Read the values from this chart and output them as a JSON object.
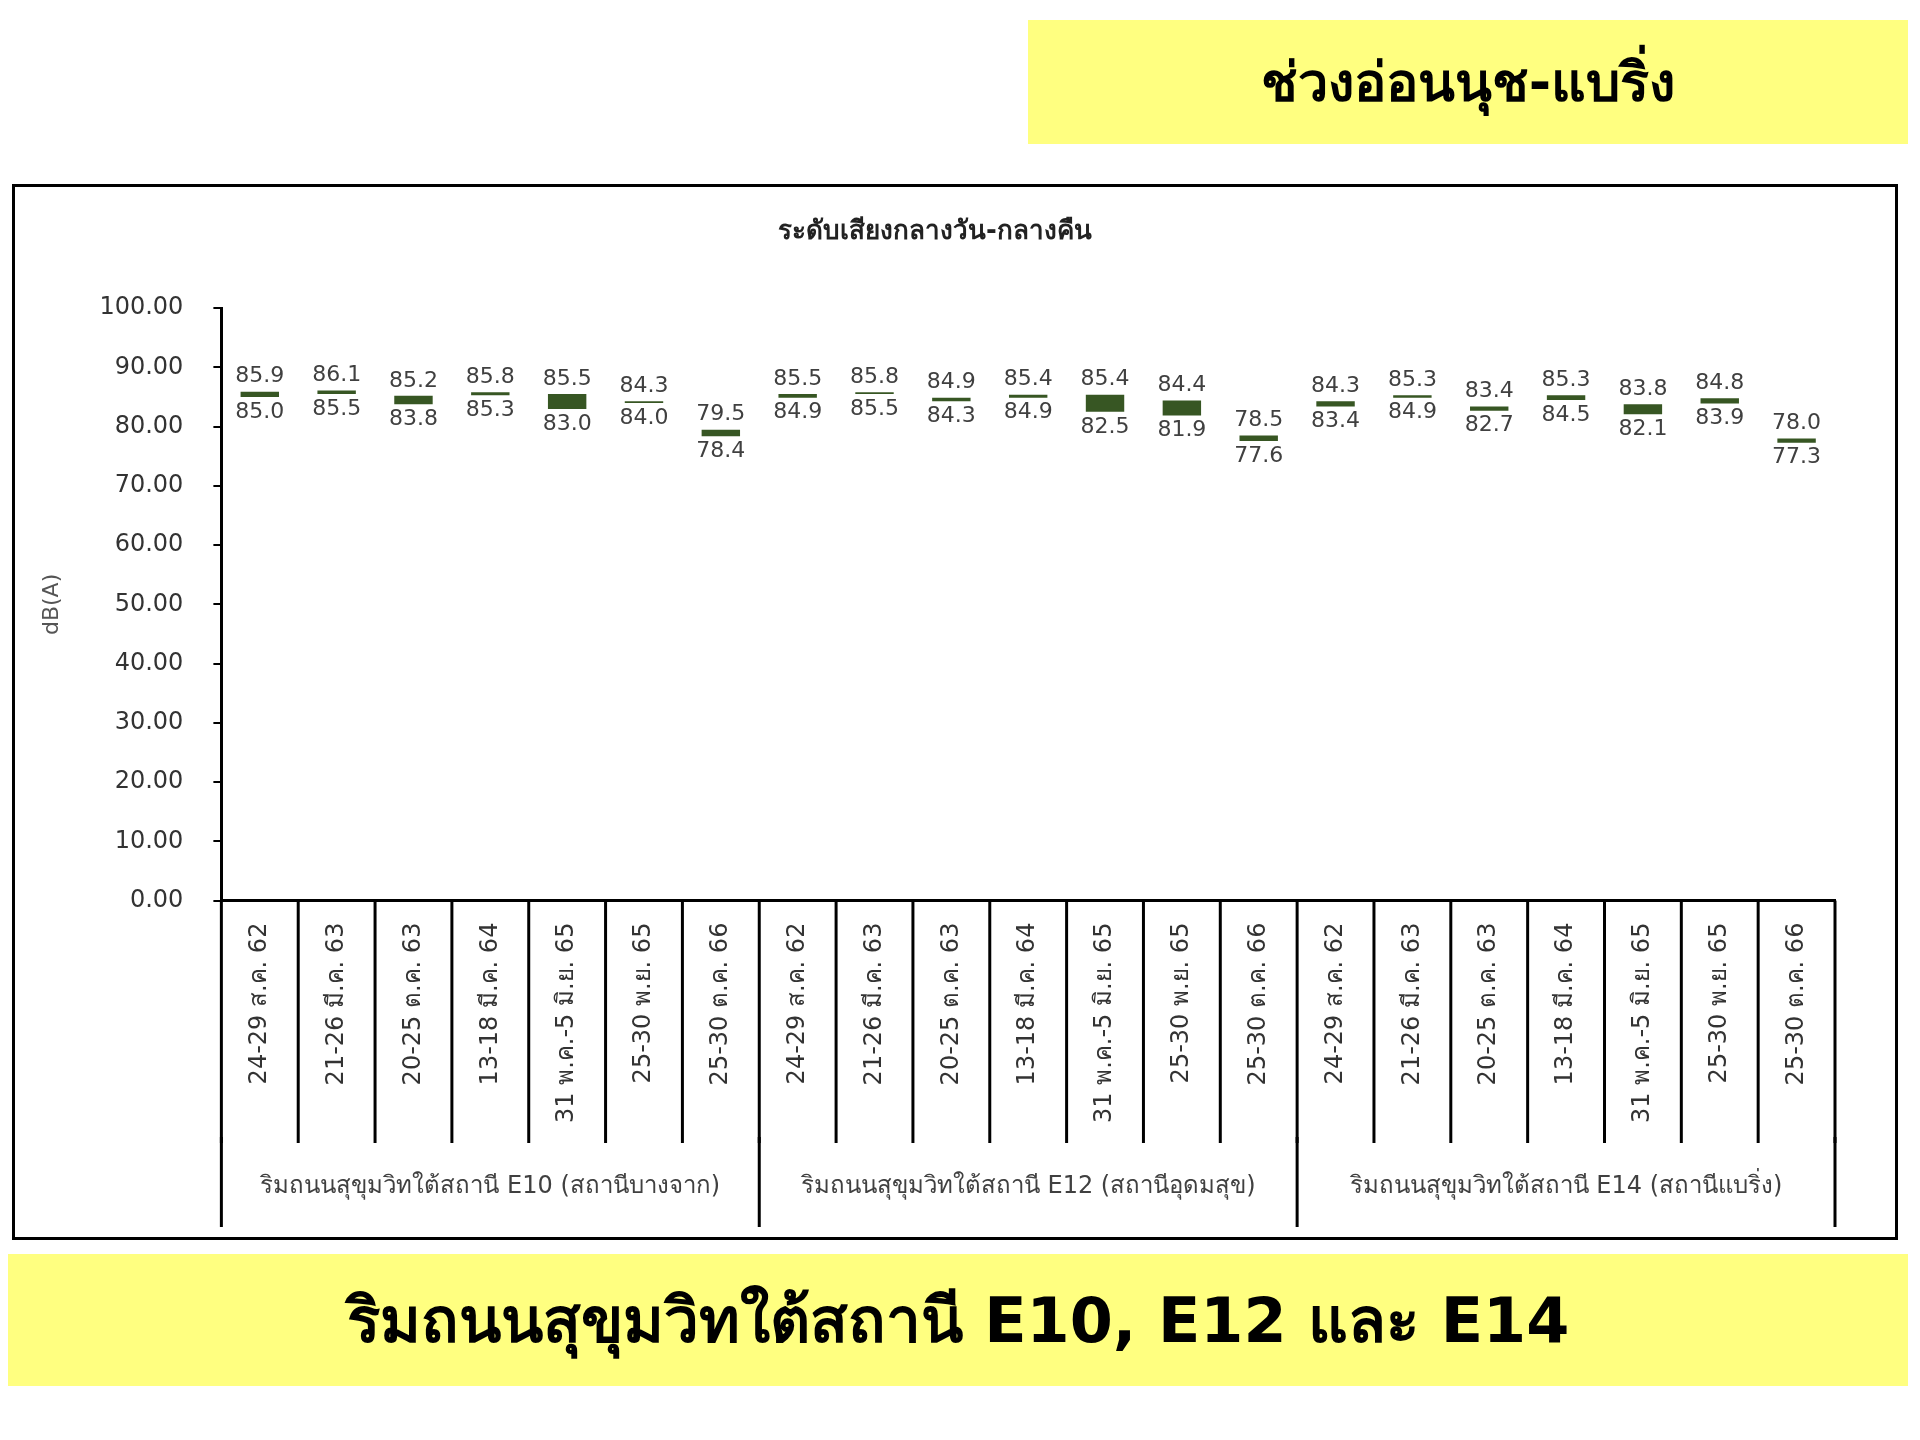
{
  "chart_data": {
    "type": "bar",
    "title": "ระดับเสียงกลางวัน-กลางคืน",
    "subtitle": "ช่วงอ่อนนุช-แบริ่ง",
    "ylabel": "dB(A)",
    "categories": [
      "24-29 ส.ค. 62",
      "21-26 มี.ค. 63",
      "20-25 ต.ค. 63",
      "13-18 มี.ค. 64",
      "31 พ.ค.-5 มิ.ย. 65",
      "25-30 พ.ย. 65",
      "25-30 ต.ค. 66",
      "24-29 ส.ค. 62",
      "21-26 มี.ค. 63",
      "20-25 ต.ค. 63",
      "13-18 มี.ค. 64",
      "31 พ.ค.-5 มิ.ย. 65",
      "25-30 พ.ย. 65",
      "25-30 ต.ค. 66",
      "24-29 ส.ค. 62",
      "21-26 มี.ค. 63",
      "20-25 ต.ค. 63",
      "13-18 มี.ค. 64",
      "31 พ.ค.-5 มิ.ย. 65",
      "25-30 พ.ย. 65",
      "25-30 ต.ค. 66"
    ],
    "series": [
      {
        "color": "#375623",
        "base": [
          85.0,
          85.5,
          83.8,
          85.3,
          83.0,
          84.0,
          78.4,
          84.9,
          85.5,
          84.3,
          84.9,
          82.5,
          81.9,
          77.6,
          83.4,
          84.9,
          82.7,
          84.5,
          82.1,
          83.9,
          77.3
        ],
        "values": [
          0.9,
          0.6,
          1.4,
          0.5,
          2.5,
          0.3,
          1.1,
          0.6,
          0.3,
          0.6,
          0.5,
          2.9,
          2.5,
          0.9,
          0.9,
          0.4,
          0.7,
          0.8,
          1.7,
          0.9,
          0.7
        ],
        "value_labels": [
          "85.9",
          "86.1",
          "85.2",
          "85.8",
          "85.5",
          "84.3",
          "79.5",
          "85.5",
          "85.8",
          "84.9",
          "85.4",
          "85.4",
          "84.4",
          "78.5",
          "84.3",
          "85.3",
          "83.4",
          "85.3",
          "83.8",
          "84.8",
          "78.0"
        ]
      }
    ],
    "ylim": [
      0,
      100
    ],
    "yticks": [
      {
        "value": 0,
        "label": "0.00"
      },
      {
        "value": 10,
        "label": "10.00"
      },
      {
        "value": 20,
        "label": "20.00"
      },
      {
        "value": 30,
        "label": "30.00"
      },
      {
        "value": 40,
        "label": "40.00"
      },
      {
        "value": 50,
        "label": "50.00"
      },
      {
        "value": 60,
        "label": "60.00"
      },
      {
        "value": 70,
        "label": "70.00"
      },
      {
        "value": 80,
        "label": "80.00"
      },
      {
        "value": 90,
        "label": "90.00"
      },
      {
        "value": 100,
        "label": "100.00"
      }
    ],
    "grid": false,
    "legend": false,
    "annotations": [
      "85.0",
      "85.5",
      "83.8",
      "85.3",
      "83.0",
      "84.0",
      "78.4",
      "84.9",
      "85.5",
      "84.3",
      "84.9",
      "82.5",
      "81.9",
      "77.6",
      "83.4",
      "84.9",
      "82.7",
      "84.5",
      "82.1",
      "83.9",
      "77.3",
      "ริมถนนสุขุมวิทใต้สถานี E10 (สถานีบางจาก)",
      "ริมถนนสุขุมวิทใต้สถานี E12 (สถานีอุดมสุข)",
      "ริมถนนสุขุมวิทใต้สถานี E14 (สถานีแบริ่ง)",
      "ริมถนนสุขุมวิทใต้สถานี E10, E12 และ E14"
    ]
  }
}
